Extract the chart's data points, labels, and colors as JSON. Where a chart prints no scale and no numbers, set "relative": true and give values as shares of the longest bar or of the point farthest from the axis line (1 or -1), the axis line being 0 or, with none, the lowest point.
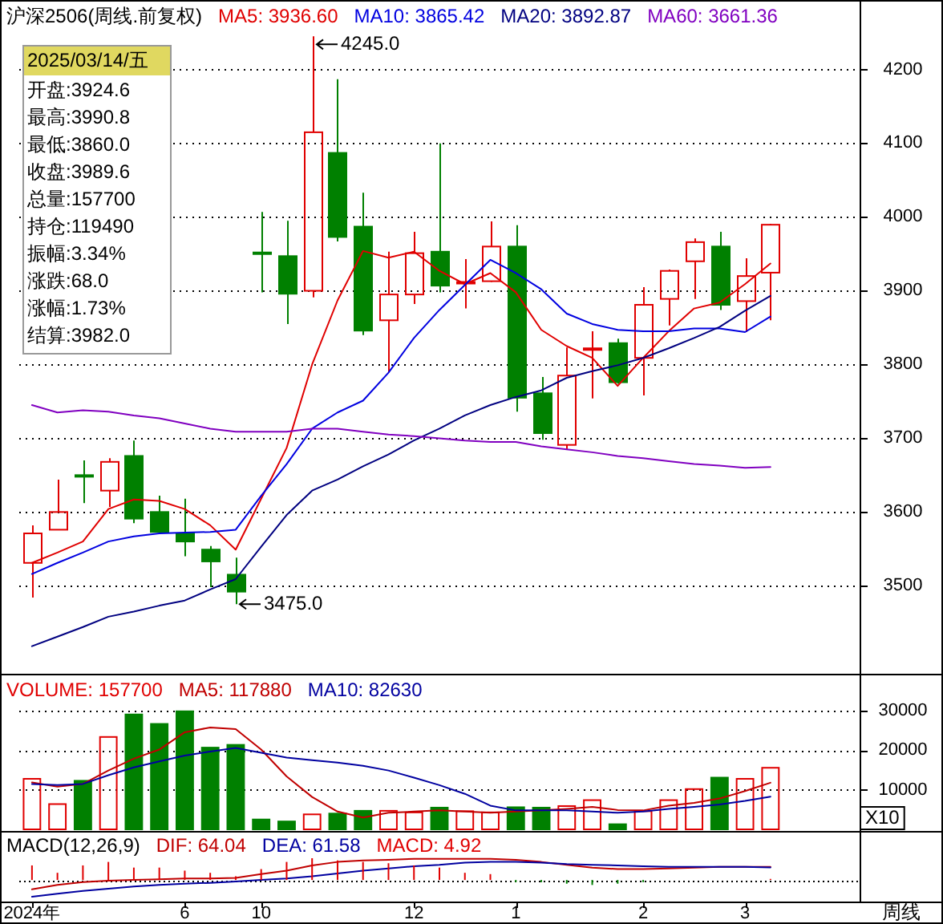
{
  "chart_data": [
    {
      "type": "candlestick",
      "title": "沪深2506(周线.前复权)",
      "tick_labels": "y",
      "grid": "y",
      "ylim": [
        3385,
        4290
      ],
      "yticks": [
        3500,
        3600,
        3700,
        3800,
        3900,
        4000,
        4100,
        4200
      ],
      "categories": [
        null,
        null,
        null,
        null,
        null,
        null,
        null,
        null,
        null,
        null,
        null,
        null,
        null,
        null,
        null,
        null,
        null,
        null,
        null,
        null,
        null,
        null,
        null,
        null,
        null,
        null,
        null,
        null,
        null,
        null
      ],
      "ohlc": [
        [
          3531,
          3582,
          3484,
          3571
        ],
        [
          3576,
          3644,
          3576,
          3600
        ],
        [
          3650,
          3670,
          3612,
          3648
        ],
        [
          3629,
          3673,
          3607,
          3668
        ],
        [
          3676,
          3697,
          3585,
          3591
        ],
        [
          3600,
          3622,
          3570,
          3573
        ],
        [
          3571,
          3618,
          3540,
          3560
        ],
        [
          3549,
          3554,
          3498,
          3533
        ],
        [
          3515,
          3538,
          3475,
          3492
        ],
        [
          3952,
          4007,
          3898,
          3950
        ],
        [
          3947,
          3995,
          3855,
          3896
        ],
        [
          3900,
          4245,
          3891,
          4115
        ],
        [
          4087,
          4187,
          3967,
          3973
        ],
        [
          3987,
          4033,
          3840,
          3846
        ],
        [
          3860,
          3953,
          3789,
          3895
        ],
        [
          3895,
          3980,
          3882,
          3951
        ],
        [
          3953,
          4100,
          3898,
          3907
        ],
        [
          3910,
          3943,
          3876,
          3912
        ],
        [
          3913,
          3994,
          3912,
          3960
        ],
        [
          3960,
          3989,
          3736,
          3755
        ],
        [
          3761,
          3783,
          3698,
          3707
        ],
        [
          3691,
          3823,
          3685,
          3785
        ],
        [
          3820,
          3845,
          3754,
          3822
        ],
        [
          3829,
          3835,
          3774,
          3776
        ],
        [
          3809,
          3905,
          3758,
          3881
        ],
        [
          3889,
          3929,
          3853,
          3927
        ],
        [
          3940,
          3971,
          3889,
          3966
        ],
        [
          3960,
          3980,
          3874,
          3881
        ],
        [
          3886,
          3944,
          3844,
          3920
        ],
        [
          3924.6,
          3990.8,
          3860.0,
          3989.6
        ]
      ],
      "colors": [
        "#e00000",
        "#e00000",
        "#008000",
        "#e00000",
        "#008000",
        "#008000",
        "#008000",
        "#008000",
        "#008000",
        "#008000",
        "#008000",
        "#e00000",
        "#008000",
        "#008000",
        "#e00000",
        "#e00000",
        "#008000",
        "#e00000",
        "#e00000",
        "#008000",
        "#008000",
        "#e00000",
        "#e00000",
        "#008000",
        "#e00000",
        "#e00000",
        "#e00000",
        "#008000",
        "#e00000",
        "#e00000"
      ],
      "series": [
        {
          "name": "MA5: 3936.60",
          "type": "line",
          "color": "#e00000",
          "values": [
            3531,
            3545,
            3560,
            3604,
            3617,
            3615,
            3604,
            3582,
            3549,
            3618,
            3687,
            3800,
            3887,
            3954,
            3945,
            3953,
            3927,
            3909,
            3924,
            3898,
            3847,
            3825,
            3809,
            3771,
            3809,
            3845,
            3876,
            3884,
            3909,
            3937
          ]
        },
        {
          "name": "MA10: 3865.42",
          "type": "line",
          "color": "#0000e0",
          "values": [
            3516,
            3531,
            3545,
            3560,
            3567,
            3571,
            3572,
            3573,
            3576,
            3622,
            3665,
            3713,
            3735,
            3751,
            3789,
            3836,
            3874,
            3908,
            3942,
            3924,
            3902,
            3869,
            3855,
            3847,
            3845,
            3845,
            3849,
            3849,
            3844,
            3865
          ]
        },
        {
          "name": "MA20: 3892.87",
          "type": "line",
          "color": "#000080",
          "values": [
            3418,
            3431,
            3444,
            3458,
            3465,
            3473,
            3480,
            3495,
            3509,
            3553,
            3596,
            3629,
            3644,
            3662,
            3678,
            3697,
            3713,
            3731,
            3745,
            3756,
            3765,
            3782,
            3791,
            3799,
            3809,
            3822,
            3836,
            3851,
            3873,
            3893
          ]
        },
        {
          "name": "MA60: 3661.36",
          "type": "line",
          "color": "#8000c0",
          "values": [
            3745,
            3735,
            3738,
            3736,
            3731,
            3727,
            3720,
            3713,
            3709,
            3709,
            3709,
            3713,
            3713,
            3709,
            3705,
            3703,
            3700,
            3697,
            3695,
            3695,
            3689,
            3685,
            3681,
            3676,
            3673,
            3669,
            3665,
            3663,
            3660,
            3661
          ]
        }
      ],
      "annotations": [
        "4245.0",
        "3475.0"
      ]
    },
    {
      "type": "bar",
      "tick_labels": "y",
      "grid": "y",
      "ylim": [
        0,
        39000
      ],
      "yticks": [
        10000,
        20000,
        30000
      ],
      "categories": [
        null,
        null,
        null,
        null,
        null,
        null,
        null,
        null,
        null,
        null,
        null,
        null,
        null,
        null,
        null,
        null,
        null,
        null,
        null,
        null,
        null,
        null,
        null,
        null,
        null,
        null,
        null,
        null,
        null,
        null
      ],
      "series": [
        {
          "name": "VOLUME: 157700",
          "type": "bar",
          "color": "#e00000",
          "colors": [
            "#e00000",
            "#e00000",
            "#008000",
            "#e00000",
            "#008000",
            "#008000",
            "#008000",
            "#008000",
            "#008000",
            "#008000",
            "#008000",
            "#e00000",
            "#008000",
            "#008000",
            "#e00000",
            "#e00000",
            "#008000",
            "#e00000",
            "#e00000",
            "#008000",
            "#008000",
            "#e00000",
            "#e00000",
            "#008000",
            "#e00000",
            "#e00000",
            "#e00000",
            "#008000",
            "#e00000",
            "#e00000"
          ],
          "values": [
            13000,
            6600,
            12500,
            23600,
            29300,
            26900,
            30100,
            20900,
            21600,
            2700,
            2200,
            4000,
            4200,
            4900,
            4900,
            4500,
            5700,
            4800,
            4500,
            5800,
            5700,
            6100,
            7600,
            1500,
            4800,
            7600,
            10400,
            13300,
            13000,
            15800
          ]
        },
        {
          "name": "MA5: 117880",
          "type": "line",
          "color": "#c00000",
          "values": [
            11900,
            10800,
            11500,
            14900,
            17900,
            20200,
            24600,
            25800,
            25400,
            20200,
            13400,
            8200,
            4500,
            3000,
            4200,
            4500,
            4800,
            4500,
            4200,
            4500,
            4800,
            5200,
            5700,
            4900,
            4800,
            6000,
            6700,
            7800,
            9700,
            11800
          ]
        },
        {
          "name": "MA10: 82630",
          "type": "line",
          "color": "#0000a0",
          "values": [
            11500,
            11200,
            11500,
            13700,
            15700,
            17200,
            18700,
            19700,
            20600,
            19400,
            18200,
            17500,
            16900,
            16100,
            14900,
            13100,
            11200,
            9000,
            6000,
            4800,
            4800,
            4800,
            4500,
            4200,
            4500,
            5200,
            5700,
            6300,
            7200,
            8300
          ]
        }
      ],
      "annotations": [
        "X10"
      ]
    },
    {
      "type": "line",
      "title": "MACD(12,26,9)",
      "tick_labels": "x",
      "relative": true,
      "categories": [
        "2024年",
        null,
        null,
        null,
        null,
        null,
        "6",
        null,
        null,
        "10",
        null,
        null,
        null,
        null,
        null,
        "12",
        null,
        null,
        null,
        "1",
        null,
        null,
        null,
        null,
        "2",
        null,
        null,
        null,
        "3",
        null
      ],
      "ref_lines": [
        {
          "axis": "y",
          "value": 0,
          "line_style": "dotted",
          "color": "#000000"
        }
      ],
      "series": [
        {
          "name": "DIF: 64.04",
          "type": "line",
          "color": "#c00000",
          "values": [
            -0.43,
            -0.23,
            -0.1,
            -0.03,
            0,
            0.03,
            0.07,
            0.07,
            0.1,
            0.27,
            0.43,
            0.67,
            0.83,
            0.9,
            0.93,
            0.97,
            0.97,
            0.97,
            0.97,
            0.93,
            0.83,
            0.7,
            0.57,
            0.5,
            0.5,
            0.53,
            0.57,
            0.6,
            0.6,
            0.6
          ]
        },
        {
          "name": "DEA: 61.58",
          "type": "line",
          "color": "#0000a0",
          "values": [
            -0.77,
            -0.63,
            -0.5,
            -0.4,
            -0.3,
            -0.23,
            -0.17,
            -0.13,
            -0.07,
            0,
            0.07,
            0.17,
            0.3,
            0.43,
            0.53,
            0.63,
            0.7,
            0.8,
            0.83,
            0.83,
            0.8,
            0.73,
            0.7,
            0.67,
            0.63,
            0.6,
            0.6,
            0.6,
            0.6,
            0.58
          ]
        },
        {
          "name": "MACD: 4.92",
          "type": "bar",
          "color": "#e00000",
          "colors": [
            "#e00000",
            "#e00000",
            "#e00000",
            "#e00000",
            "#e00000",
            "#e00000",
            "#e00000",
            "#e00000",
            "#e00000",
            "#e00000",
            "#e00000",
            "#e00000",
            "#e00000",
            "#e00000",
            "#e00000",
            "#e00000",
            "#e00000",
            "#e00000",
            "#e00000",
            "#008000",
            "#008000",
            "#008000",
            "#008000",
            "#008000",
            "#008000",
            "#e00000",
            "#e00000",
            "#e00000",
            "#e00000",
            "#e00000"
          ],
          "values": [
            0.67,
            0.33,
            0.67,
            0.83,
            0.57,
            0.57,
            0.43,
            0.33,
            0.17,
            0.5,
            0.83,
            1,
            0.9,
            0.83,
            0.77,
            0.67,
            0.57,
            0.33,
            0.27,
            -0.1,
            -0.1,
            -0.17,
            -0.23,
            -0.17,
            -0.1,
            0,
            0,
            0,
            0,
            0.05
          ]
        }
      ],
      "annotations": [
        "周线"
      ]
    },
    {
      "type": "other",
      "title": "2025/03/14/五",
      "annotations": [
        "开盘:3924.6",
        "最高:3990.8",
        "最低:3860.0",
        "收盘:3989.6",
        "总量:157700",
        "持仓:119490",
        "振幅:3.34%",
        "涨跌:68.0",
        "涨幅:1.73%",
        "结算:3982.0"
      ]
    }
  ]
}
